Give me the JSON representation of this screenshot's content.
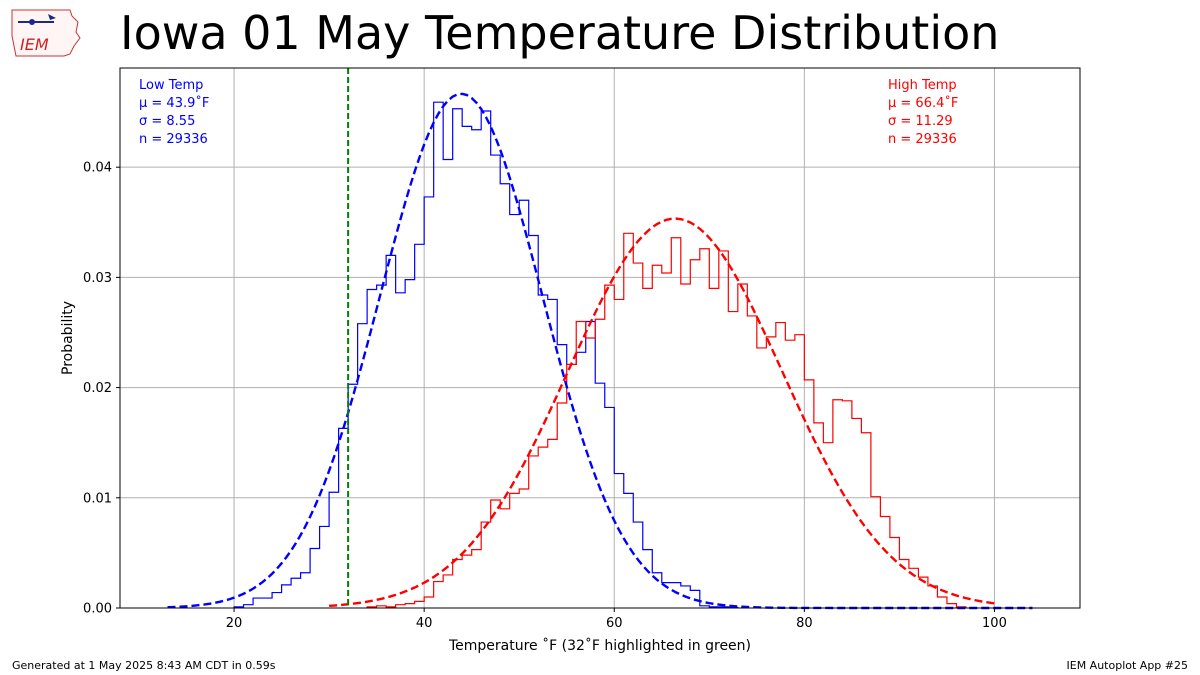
{
  "title": "Iowa 01 May Temperature Distribution",
  "logo_text": "IEM",
  "footer": {
    "left": "Generated at 1 May 2025 8:43 AM CDT in 0.59s",
    "right": "IEM Autoplot App #25"
  },
  "chart_data": {
    "type": "histogram",
    "xlabel": "Temperature $^\\circ$F (32$^\\circ$F highlighted in green)",
    "xlabel_display": "Temperature ˚F (32˚F highlighted in green)",
    "ylabel": "Probability",
    "xlim": [
      8,
      109
    ],
    "ylim": [
      0,
      0.049
    ],
    "xticks": [
      20,
      40,
      60,
      80,
      100
    ],
    "yticks": [
      0.0,
      0.01,
      0.02,
      0.03,
      0.04
    ],
    "ytick_labels": [
      "0.00",
      "0.01",
      "0.02",
      "0.03",
      "0.04"
    ],
    "grid": true,
    "highlight_x": 32,
    "highlight_color": "#008000",
    "series": [
      {
        "name": "Low Temp",
        "color": "#0000ff",
        "stats": [
          "Low Temp",
          "μ = 43.9˚F",
          "σ = 8.55",
          "n = 29336"
        ],
        "legend_placement": "top-left",
        "mean": 43.9,
        "sigma": 8.55,
        "n": 29336,
        "fit_range": [
          13,
          104
        ],
        "bins_start": 20,
        "bin_width": 1,
        "values": [
          0.0001,
          0.0003,
          0.0009,
          0.0009,
          0.0014,
          0.0021,
          0.0027,
          0.0032,
          0.0054,
          0.0074,
          0.0105,
          0.0163,
          0.0203,
          0.0258,
          0.0289,
          0.0293,
          0.032,
          0.0286,
          0.0298,
          0.033,
          0.0373,
          0.0459,
          0.0407,
          0.0453,
          0.0437,
          0.0434,
          0.0451,
          0.0411,
          0.0385,
          0.0357,
          0.037,
          0.0338,
          0.0284,
          0.028,
          0.0239,
          0.0221,
          0.0232,
          0.026,
          0.0204,
          0.0182,
          0.0122,
          0.0104,
          0.0078,
          0.0053,
          0.0032,
          0.0023,
          0.0023,
          0.002,
          0.0016,
          0.0002,
          0.0001,
          0.0001,
          5e-05
        ]
      },
      {
        "name": "High Temp",
        "color": "#ff0000",
        "stats": [
          "High Temp",
          "μ = 66.4˚F",
          "σ = 11.29",
          "n = 29336"
        ],
        "legend_placement": "top-right",
        "mean": 66.4,
        "sigma": 11.29,
        "n": 29336,
        "fit_range": [
          30,
          100
        ],
        "bins_start": 34,
        "bin_width": 1,
        "values": [
          0.0001,
          0.0002,
          0.0001,
          0.0003,
          0.0004,
          0.0006,
          0.001,
          0.0024,
          0.003,
          0.0044,
          0.0048,
          0.0053,
          0.0078,
          0.0098,
          0.009,
          0.0104,
          0.0108,
          0.0138,
          0.0146,
          0.0153,
          0.0186,
          0.0221,
          0.026,
          0.0245,
          0.0262,
          0.0293,
          0.028,
          0.034,
          0.0313,
          0.029,
          0.0311,
          0.0304,
          0.0336,
          0.0294,
          0.0316,
          0.0326,
          0.029,
          0.0324,
          0.0269,
          0.0294,
          0.0265,
          0.0236,
          0.0246,
          0.0259,
          0.0243,
          0.0248,
          0.0207,
          0.0168,
          0.015,
          0.0189,
          0.0188,
          0.0172,
          0.0159,
          0.0101,
          0.0083,
          0.0064,
          0.0044,
          0.0036,
          0.0028,
          0.002,
          0.001,
          0.0004,
          0.0001
        ]
      }
    ]
  }
}
